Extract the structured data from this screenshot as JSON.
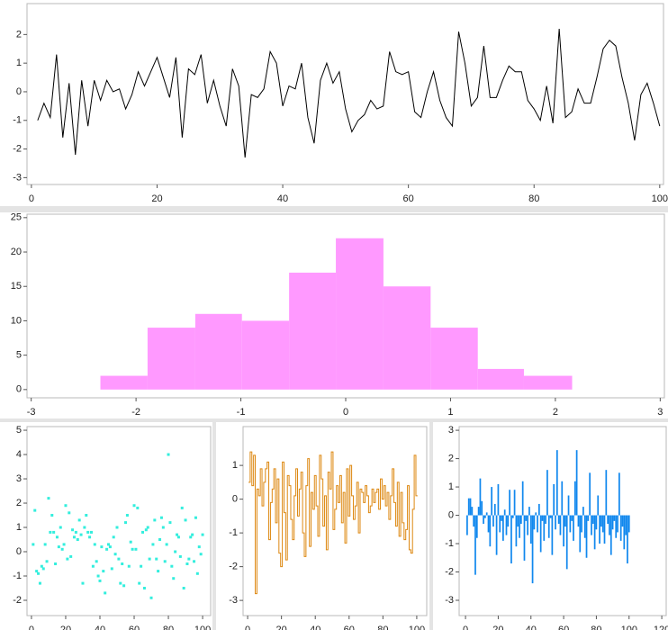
{
  "chart_data": [
    {
      "type": "line",
      "color": "#000000",
      "x": [
        1,
        2,
        3,
        4,
        5,
        6,
        7,
        8,
        9,
        10,
        11,
        12,
        13,
        14,
        15,
        16,
        17,
        18,
        19,
        20,
        21,
        22,
        23,
        24,
        25,
        26,
        27,
        28,
        29,
        30,
        31,
        32,
        33,
        34,
        35,
        36,
        37,
        38,
        39,
        40,
        41,
        42,
        43,
        44,
        45,
        46,
        47,
        48,
        49,
        50,
        51,
        52,
        53,
        54,
        55,
        56,
        57,
        58,
        59,
        60,
        61,
        62,
        63,
        64,
        65,
        66,
        67,
        68,
        69,
        70,
        71,
        72,
        73,
        74,
        75,
        76,
        77,
        78,
        79,
        80,
        81,
        82,
        83,
        84,
        85,
        86,
        87,
        88,
        89,
        90,
        91,
        92,
        93,
        94,
        95,
        96,
        97,
        98,
        99,
        100
      ],
      "values": [
        -1.0,
        -0.4,
        -0.9,
        1.3,
        -1.6,
        0.3,
        -2.2,
        0.4,
        -1.2,
        0.4,
        -0.3,
        0.4,
        0.0,
        0.1,
        -0.6,
        -0.1,
        0.7,
        0.2,
        0.7,
        1.2,
        0.5,
        -0.2,
        1.2,
        -1.6,
        0.8,
        0.6,
        1.3,
        -0.4,
        0.4,
        -0.5,
        -1.2,
        0.8,
        0.2,
        -2.3,
        -0.1,
        -0.2,
        0.1,
        1.4,
        1.0,
        -0.5,
        0.2,
        0.1,
        1.0,
        -0.9,
        -1.8,
        0.4,
        1.0,
        0.3,
        0.7,
        -0.6,
        -1.4,
        -1.0,
        -0.8,
        -0.3,
        -0.6,
        -0.5,
        1.4,
        0.7,
        0.6,
        0.7,
        -0.7,
        -0.9,
        0.0,
        0.7,
        -0.3,
        -0.9,
        -1.2,
        2.1,
        1.0,
        -0.5,
        -0.2,
        1.6,
        -0.2,
        -0.2,
        0.4,
        0.9,
        0.7,
        0.7,
        -0.3,
        -0.6,
        -1.0,
        0.2,
        -1.1,
        2.2,
        -0.9,
        -0.7,
        0.1,
        -0.4,
        -0.4,
        0.5,
        1.5,
        1.8,
        1.6,
        0.5,
        -0.4,
        -1.7,
        -0.1,
        0.3,
        -0.4,
        -1.2
      ],
      "xlim": [
        -0.7,
        100.6
      ],
      "ylim": [
        -3.24,
        3.08
      ],
      "xticks": [
        0,
        20,
        40,
        60,
        80,
        100
      ],
      "yticks": [
        -3,
        -2,
        -1,
        0,
        1,
        2
      ]
    },
    {
      "type": "histogram",
      "color": "#ff99ff",
      "bins": [
        -2.34,
        -1.89,
        -1.435,
        -0.99,
        -0.54,
        -0.094,
        0.36,
        0.81,
        1.26,
        1.7,
        2.16
      ],
      "values": [
        2,
        9,
        11,
        10,
        17,
        22,
        15,
        9,
        3,
        2
      ],
      "xlim": [
        -3.04,
        3.04
      ],
      "ylim": [
        -1.2,
        25.5
      ],
      "xticks": [
        -3,
        -2,
        -1,
        0,
        1,
        2,
        3
      ],
      "yticks": [
        0,
        5,
        10,
        15,
        20,
        25
      ]
    },
    {
      "type": "scatter",
      "color": "#33eedd",
      "x": [
        1,
        2,
        3,
        4,
        5,
        6,
        7,
        8,
        9,
        10,
        11,
        12,
        13,
        14,
        15,
        16,
        17,
        18,
        19,
        20,
        21,
        22,
        23,
        24,
        25,
        26,
        27,
        28,
        29,
        30,
        31,
        32,
        33,
        34,
        35,
        36,
        37,
        38,
        39,
        40,
        41,
        42,
        43,
        44,
        45,
        46,
        47,
        48,
        49,
        50,
        51,
        52,
        53,
        54,
        55,
        56,
        57,
        58,
        59,
        60,
        61,
        62,
        63,
        64,
        65,
        66,
        67,
        68,
        69,
        70,
        71,
        72,
        73,
        74,
        75,
        76,
        77,
        78,
        79,
        80,
        81,
        82,
        83,
        84,
        85,
        86,
        87,
        88,
        89,
        90,
        91,
        92,
        93,
        94,
        95,
        96,
        97,
        98,
        99,
        100
      ],
      "values": [
        0.3,
        1.7,
        -0.8,
        -0.9,
        -1.3,
        -0.6,
        -0.7,
        0.3,
        -0.4,
        2.2,
        0.8,
        1.5,
        0.8,
        -0.5,
        0.6,
        0.2,
        1.0,
        0.1,
        0.3,
        1.9,
        -0.3,
        1.6,
        -0.2,
        0.9,
        0.6,
        0.8,
        0.5,
        1.3,
        0.7,
        -1.3,
        1.0,
        1.5,
        0.8,
        0.6,
        0.8,
        -0.6,
        0.3,
        -0.4,
        -1.0,
        -1.2,
        0.2,
        -0.8,
        -1.7,
        0.1,
        0.3,
        0.2,
        -0.7,
        0.6,
        -0.1,
        1.0,
        -0.3,
        -1.3,
        -0.5,
        -1.4,
        1.2,
        1.5,
        -0.6,
        0.4,
        0.1,
        1.9,
        0.1,
        1.8,
        -1.3,
        -0.6,
        0.8,
        -1.5,
        0.9,
        1.0,
        -0.3,
        -1.9,
        0.3,
        1.3,
        -0.3,
        -0.8,
        0.5,
        1.4,
        1.0,
        -0.4,
        0.3,
        4.0,
        1.2,
        -0.6,
        -1.1,
        0.0,
        0.7,
        0.6,
        -0.2,
        1.8,
        -1.5,
        1.3,
        -0.5,
        -0.3,
        0.6,
        0.7,
        -0.4,
        1.4,
        -0.9,
        0.2,
        -0.1,
        0.7
      ],
      "xlim": [
        -2.6,
        104.7
      ],
      "ylim": [
        -2.63,
        5.15
      ],
      "xticks": [
        0,
        20,
        40,
        60,
        80,
        100
      ],
      "yticks": [
        -2,
        -1,
        0,
        1,
        2,
        3,
        4,
        5
      ]
    },
    {
      "type": "step",
      "color": "#dd8811",
      "x": [
        1,
        2,
        3,
        4,
        5,
        6,
        7,
        8,
        9,
        10,
        11,
        12,
        13,
        14,
        15,
        16,
        17,
        18,
        19,
        20,
        21,
        22,
        23,
        24,
        25,
        26,
        27,
        28,
        29,
        30,
        31,
        32,
        33,
        34,
        35,
        36,
        37,
        38,
        39,
        40,
        41,
        42,
        43,
        44,
        45,
        46,
        47,
        48,
        49,
        50,
        51,
        52,
        53,
        54,
        55,
        56,
        57,
        58,
        59,
        60,
        61,
        62,
        63,
        64,
        65,
        66,
        67,
        68,
        69,
        70,
        71,
        72,
        73,
        74,
        75,
        76,
        77,
        78,
        79,
        80,
        81,
        82,
        83,
        84,
        85,
        86,
        87,
        88,
        89,
        90,
        91,
        92,
        93,
        94,
        95,
        96,
        97,
        98,
        99,
        100
      ],
      "values": [
        0.5,
        1.4,
        0.4,
        1.3,
        -2.8,
        0.3,
        0.1,
        0.9,
        -0.2,
        0.5,
        0.9,
        1.1,
        -1.2,
        -0.1,
        0.3,
        0.9,
        -0.7,
        0.6,
        -1.6,
        -2.0,
        1.1,
        -0.4,
        -1.8,
        0.7,
        0.4,
        -0.6,
        -1.2,
        0.1,
        0.9,
        -0.5,
        0.3,
        0.8,
        -1.0,
        -1.7,
        0.4,
        1.2,
        -1.4,
        0.2,
        -0.3,
        0.7,
        -0.2,
        -1.1,
        1.3,
        0.6,
        -0.8,
        0.1,
        -1.5,
        0.8,
        0.3,
        1.4,
        -0.9,
        -0.3,
        0.4,
        -0.1,
        0.7,
        -0.7,
        0.2,
        -1.3,
        0.9,
        -0.5,
        1.0,
        0.1,
        -0.6,
        -0.2,
        0.5,
        -1.0,
        0.3,
        0.2,
        -0.1,
        0.4,
        0.1,
        -0.4,
        -0.2,
        0.3,
        -0.1,
        0.2,
        0.3,
        -0.3,
        0.6,
        0.0,
        0.4,
        -0.2,
        0.2,
        -0.6,
        0.1,
        0.9,
        -0.1,
        -0.8,
        0.5,
        -1.1,
        0.2,
        -0.7,
        -1.2,
        -0.9,
        0.4,
        -1.5,
        -1.6,
        -0.3,
        1.3,
        0.1
      ],
      "xlim": [
        -2.7,
        105.9
      ],
      "ylim": [
        -3.45,
        2.15
      ],
      "xticks": [
        0,
        20,
        40,
        60,
        80,
        100
      ],
      "yticks": [
        -3,
        -2,
        -1,
        0,
        1
      ]
    },
    {
      "type": "bar",
      "color": "#1188ee",
      "x": [
        1,
        2,
        3,
        4,
        5,
        6,
        7,
        8,
        9,
        10,
        11,
        12,
        13,
        14,
        15,
        16,
        17,
        18,
        19,
        20,
        21,
        22,
        23,
        24,
        25,
        26,
        27,
        28,
        29,
        30,
        31,
        32,
        33,
        34,
        35,
        36,
        37,
        38,
        39,
        40,
        41,
        42,
        43,
        44,
        45,
        46,
        47,
        48,
        49,
        50,
        51,
        52,
        53,
        54,
        55,
        56,
        57,
        58,
        59,
        60,
        61,
        62,
        63,
        64,
        65,
        66,
        67,
        68,
        69,
        70,
        71,
        72,
        73,
        74,
        75,
        76,
        77,
        78,
        79,
        80,
        81,
        82,
        83,
        84,
        85,
        86,
        87,
        88,
        89,
        90,
        91,
        92,
        93,
        94,
        95,
        96,
        97,
        98,
        99,
        100
      ],
      "values": [
        -0.7,
        0.6,
        0.6,
        0.3,
        -0.4,
        -2.1,
        -0.8,
        0.3,
        1.3,
        0.5,
        -0.3,
        -0.1,
        0.1,
        -0.6,
        -1.1,
        1.0,
        -0.4,
        0.4,
        -1.4,
        1.1,
        -0.6,
        -0.2,
        -0.9,
        0.2,
        -0.7,
        -0.4,
        0.9,
        -1.7,
        -0.1,
        0.9,
        -1.1,
        -0.4,
        -0.8,
        -0.3,
        1.2,
        -1.6,
        -0.2,
        -0.7,
        0.3,
        -1.0,
        -2.4,
        -0.5,
        0.1,
        -0.6,
        0.4,
        -1.3,
        -0.2,
        -0.9,
        -0.3,
        1.6,
        -0.8,
        -0.1,
        -1.4,
        1.1,
        -0.5,
        2.3,
        -0.3,
        -0.7,
        1.2,
        -1.1,
        -0.4,
        -1.9,
        0.7,
        -0.6,
        -0.2,
        -0.9,
        1.2,
        2.3,
        -0.4,
        -1.3,
        -0.6,
        0.3,
        -0.8,
        -1.5,
        -0.2,
        1.5,
        -0.7,
        -0.3,
        -1.2,
        -0.5,
        0.7,
        -1.0,
        -0.4,
        -0.6,
        -1.0,
        1.6,
        -0.3,
        -0.7,
        -1.4,
        -0.5,
        -0.2,
        -0.8,
        -0.6,
        1.5,
        -0.9,
        -0.4,
        -1.2,
        -0.7,
        -1.7,
        -0.6
      ],
      "xlim": [
        -3.9,
        122.7
      ],
      "ylim": [
        -3.54,
        3.13
      ],
      "xticks": [
        0,
        20,
        40,
        60,
        80,
        100,
        120
      ],
      "yticks": [
        -3,
        -2,
        -1,
        0,
        1,
        2,
        3
      ]
    }
  ]
}
